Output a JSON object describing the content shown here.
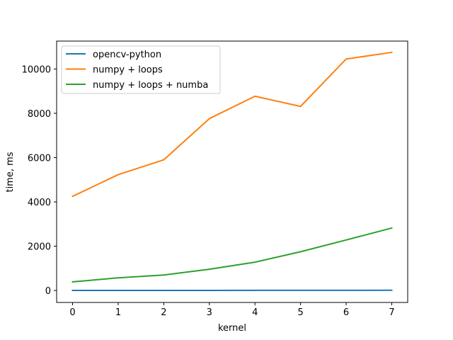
{
  "chart_data": {
    "type": "line",
    "title": "",
    "xlabel": "kernel",
    "ylabel": "time, ms",
    "x": [
      0,
      1,
      2,
      3,
      4,
      5,
      6,
      7
    ],
    "x_ticks": [
      "0",
      "1",
      "2",
      "3",
      "4",
      "5",
      "6",
      "7"
    ],
    "y_ticks": [
      "0",
      "2000",
      "4000",
      "6000",
      "8000",
      "10000"
    ],
    "xlim": [
      -0.35,
      7.35
    ],
    "ylim": [
      -540,
      11260
    ],
    "grid": false,
    "legend_position": "top-left",
    "series": [
      {
        "name": "opencv-python",
        "color": "#1f77b4",
        "values": [
          2,
          3,
          4,
          5,
          6,
          7,
          8,
          10
        ]
      },
      {
        "name": "numpy + loops",
        "color": "#ff7f0e",
        "values": [
          4250,
          5230,
          5900,
          7760,
          8770,
          8310,
          10450,
          10750
        ]
      },
      {
        "name": "numpy + loops + numba",
        "color": "#2ca02c",
        "values": [
          390,
          570,
          700,
          960,
          1280,
          1750,
          2280,
          2820
        ]
      }
    ]
  }
}
